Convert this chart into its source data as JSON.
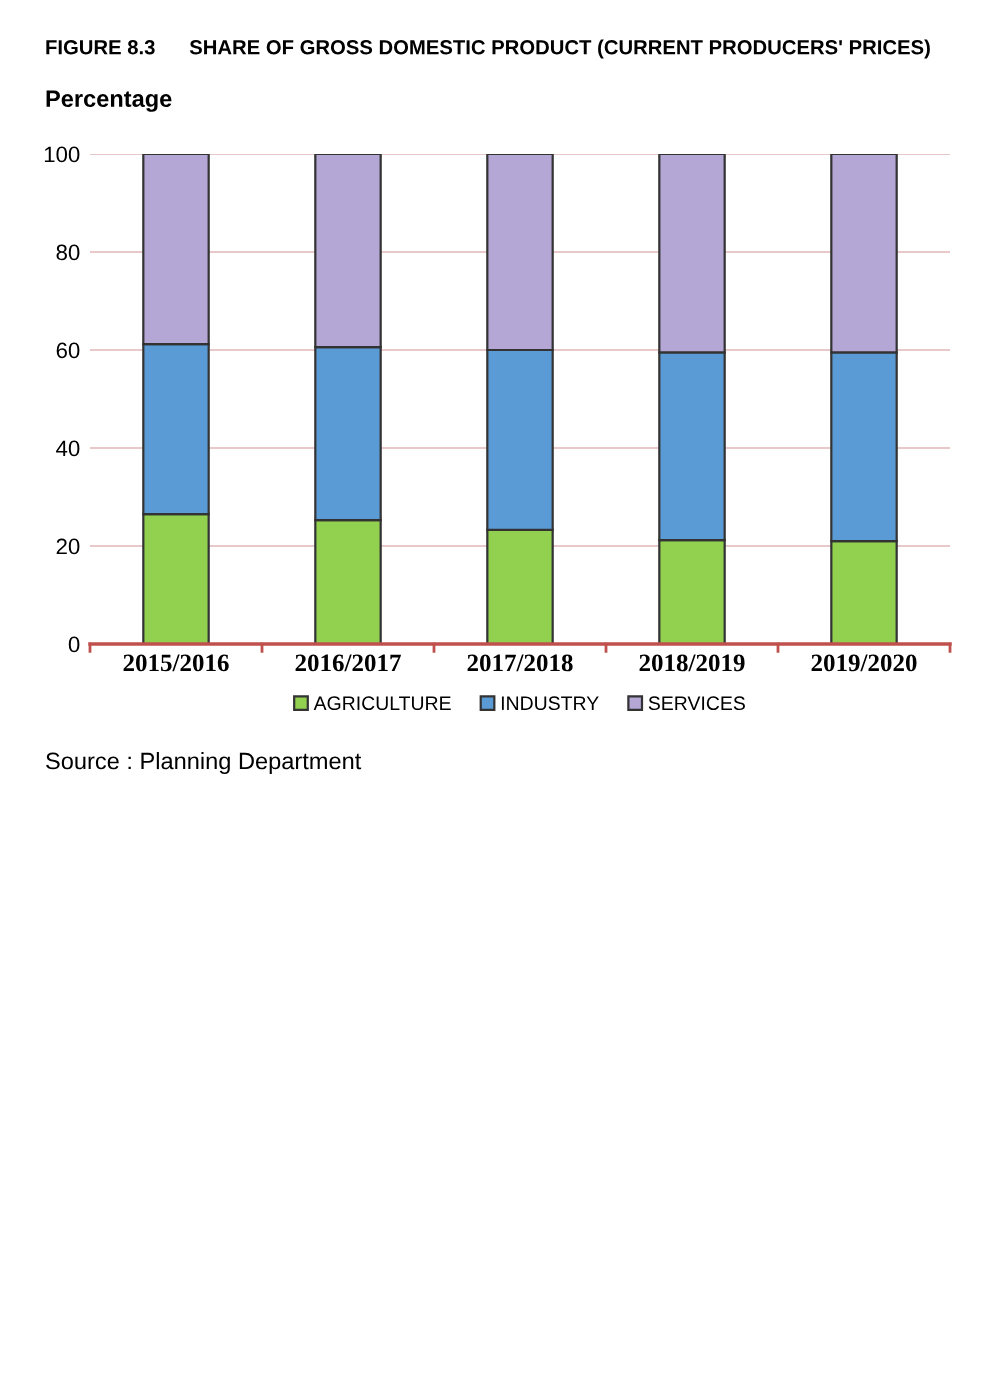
{
  "chart_data": {
    "type": "bar",
    "stacked": true,
    "title": "FIGURE 8.3      SHARE OF GROSS DOMESTIC PRODUCT (CURRENT PRODUCERS' PRICES)",
    "ylabel": "Percentage",
    "categories": [
      "2015/2016",
      "2016/2017",
      "2017/2018",
      "2018/2019",
      "2019/2020"
    ],
    "series": [
      {
        "name": "AGRICULTURE",
        "color": "#92d050",
        "values": [
          26.5,
          25.3,
          23.3,
          21.2,
          21.0
        ]
      },
      {
        "name": "INDUSTRY",
        "color": "#5b9bd5",
        "values": [
          34.7,
          35.3,
          36.7,
          38.3,
          38.5
        ]
      },
      {
        "name": "SERVICES",
        "color": "#b4a7d6",
        "values": [
          38.8,
          39.4,
          40.0,
          40.5,
          40.5
        ]
      }
    ],
    "ylim": [
      0,
      100
    ],
    "yticks": [
      0,
      20,
      40,
      60,
      80,
      100
    ],
    "grid": "y",
    "legend": "bottom",
    "annotations": [
      "Source : Planning Department"
    ]
  }
}
